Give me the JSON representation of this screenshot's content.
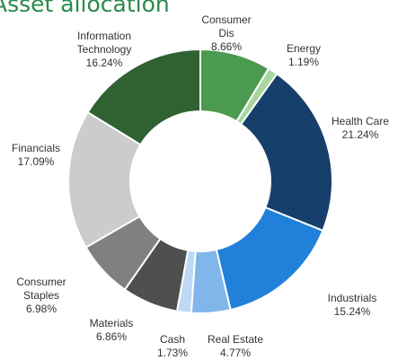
{
  "chart_data": {
    "type": "donut",
    "title": "Asset allocation",
    "categories": [
      "Consumer Dis",
      "Energy",
      "Health Care",
      "Industrials",
      "Real Estate",
      "Cash",
      "Materials",
      "Consumer Staples",
      "Financials",
      "Information Technology"
    ],
    "values": [
      8.66,
      1.19,
      21.24,
      15.24,
      4.77,
      1.73,
      6.86,
      6.98,
      17.09,
      16.24
    ],
    "value_labels": [
      "8.66%",
      "1.19%",
      "21.24%",
      "15.24%",
      "4.77%",
      "1.73%",
      "6.86%",
      "6.98%",
      "17.09%",
      "16.24%"
    ],
    "colors": [
      "#4c9a50",
      "#a8d6a0",
      "#163f6b",
      "#2180d9",
      "#80b6e9",
      "#bed9f3",
      "#4f4f4f",
      "#808080",
      "#cccccc",
      "#2f6131"
    ]
  }
}
